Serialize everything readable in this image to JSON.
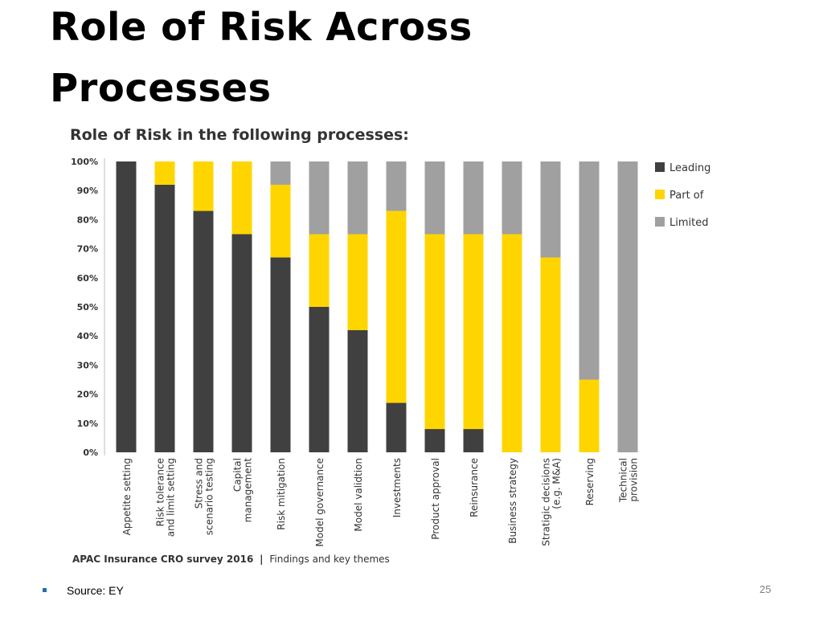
{
  "slide": {
    "title": "Role of Risk Across Processes",
    "page_number": "25",
    "source": "Source: EY"
  },
  "footer": {
    "survey": "APAC Insurance CRO survey 2016",
    "separator": "|",
    "subtitle": "Findings and key themes"
  },
  "colors": {
    "leading": "#404040",
    "part_of": "#ffd500",
    "limited": "#a0a0a0"
  },
  "chart_data": {
    "type": "bar",
    "stacked": true,
    "title": "Role of Risk in the following processes:",
    "xlabel": "",
    "ylabel": "",
    "ylim": [
      0,
      100
    ],
    "yticks": [
      "0%",
      "10%",
      "20%",
      "30%",
      "40%",
      "50%",
      "60%",
      "70%",
      "80%",
      "90%",
      "100%"
    ],
    "legend_position": "right",
    "categories": [
      [
        "Appetite setting"
      ],
      [
        "Risk tolerance",
        "and limit setting"
      ],
      [
        "Stress and",
        "scenario testing"
      ],
      [
        "Capital",
        "management"
      ],
      [
        "Risk mitigation"
      ],
      [
        "Model governance"
      ],
      [
        "Model validtion"
      ],
      [
        "Investments"
      ],
      [
        "Product approval"
      ],
      [
        "Reinsurance"
      ],
      [
        "Business strategy"
      ],
      [
        "Stratigic decisions",
        "(e.g. M&A)"
      ],
      [
        "Reserving"
      ],
      [
        "Technical",
        "provision"
      ]
    ],
    "series": [
      {
        "name": "Leading",
        "values": [
          100,
          92,
          83,
          75,
          67,
          50,
          42,
          17,
          8,
          8,
          0,
          0,
          0,
          0
        ]
      },
      {
        "name": "Part of",
        "values": [
          0,
          8,
          17,
          25,
          25,
          25,
          33,
          66,
          67,
          67,
          75,
          67,
          25,
          0
        ]
      },
      {
        "name": "Limited",
        "values": [
          0,
          0,
          0,
          0,
          8,
          25,
          25,
          17,
          25,
          25,
          25,
          33,
          75,
          100
        ]
      }
    ]
  }
}
